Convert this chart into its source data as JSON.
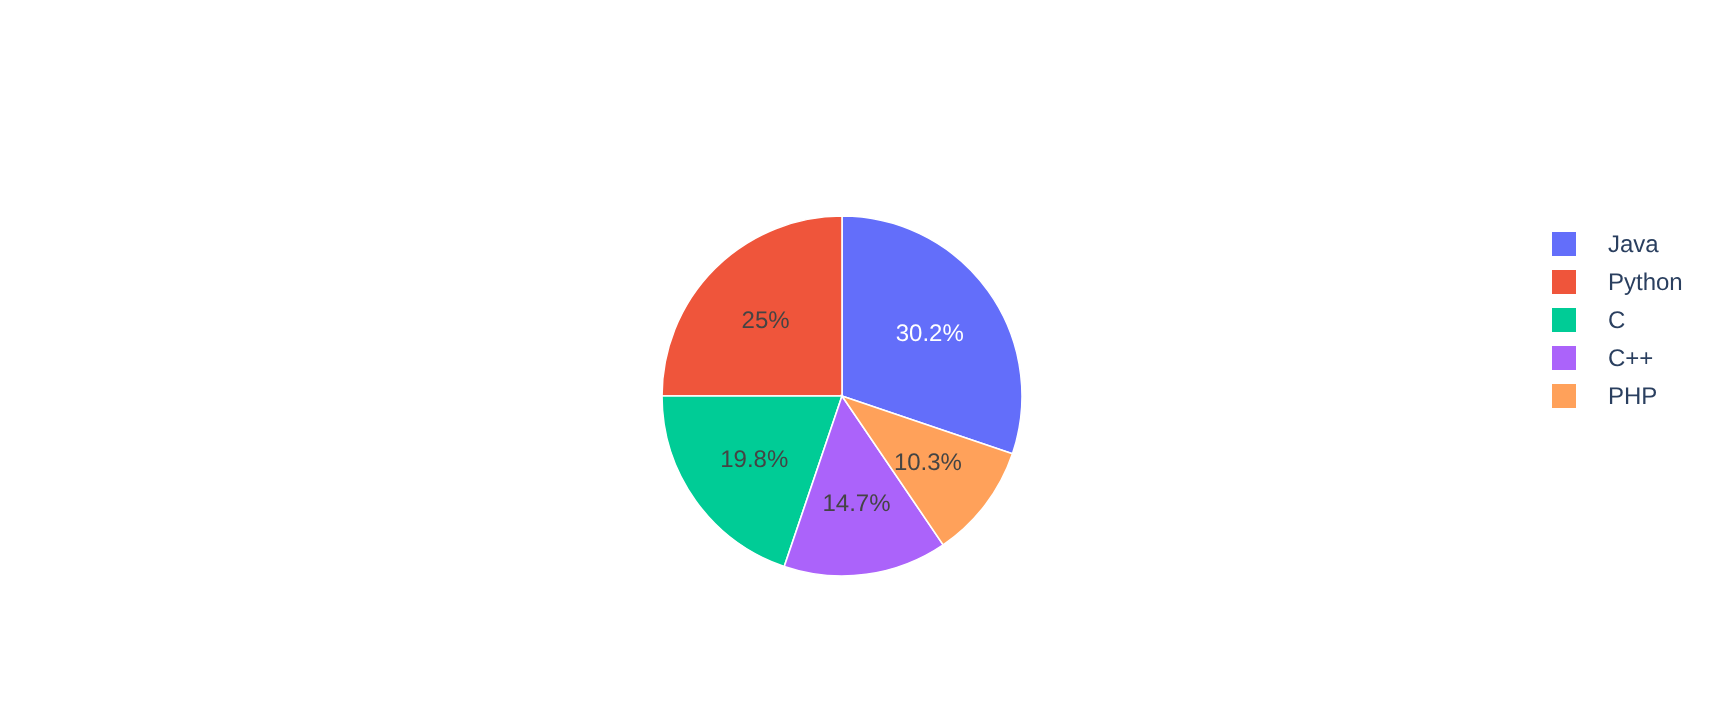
{
  "chart_data": {
    "type": "pie",
    "categories": [
      "Java",
      "Python",
      "C",
      "C++",
      "PHP"
    ],
    "values": [
      30.2,
      25,
      19.8,
      14.7,
      10.3
    ],
    "colors": [
      "#636efa",
      "#ef553b",
      "#00cc96",
      "#ab63fa",
      "#ffa15a"
    ],
    "value_labels": [
      "30.2%",
      "25%",
      "19.8%",
      "14.7%",
      "10.3%"
    ],
    "legend": "right"
  }
}
